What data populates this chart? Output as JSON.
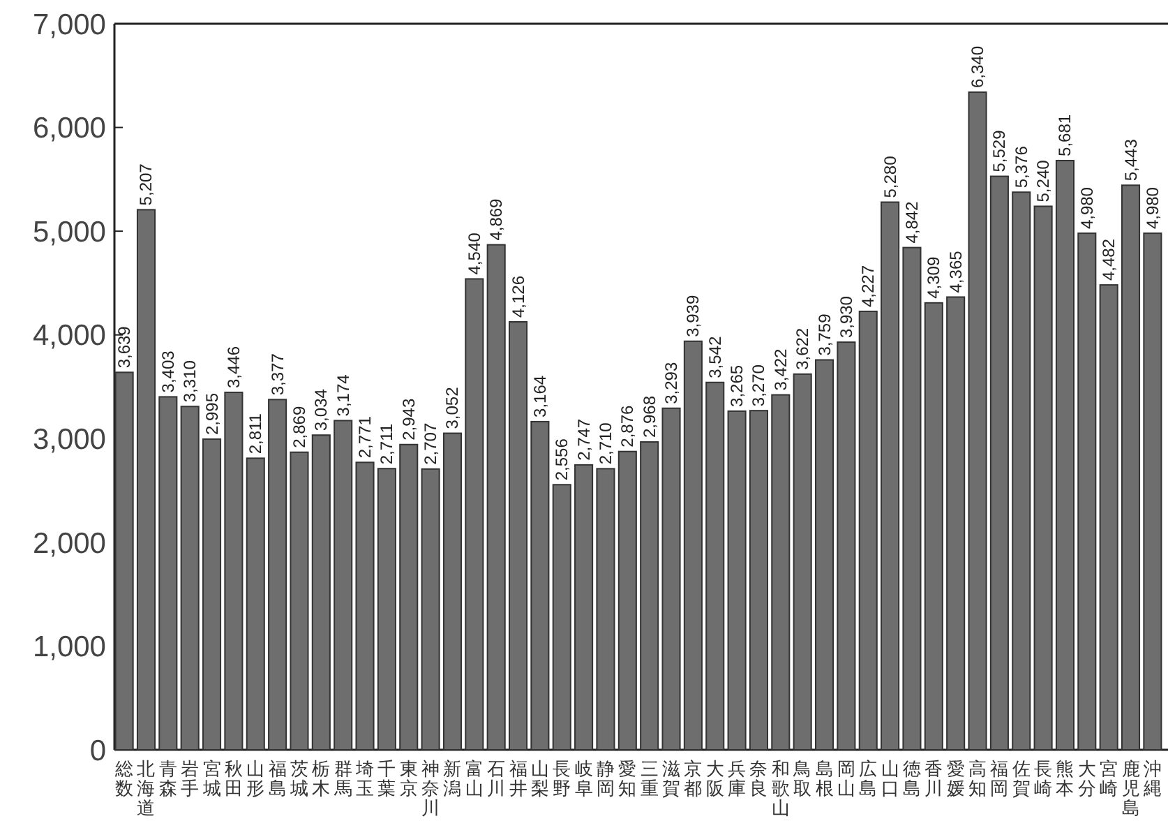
{
  "chart_data": {
    "type": "bar",
    "categories": [
      "総数",
      "北海道",
      "青森",
      "岩手",
      "宮城",
      "秋田",
      "山形",
      "福島",
      "茨城",
      "栃木",
      "群馬",
      "埼玉",
      "千葉",
      "東京",
      "神奈川",
      "新潟",
      "富山",
      "石川",
      "福井",
      "山梨",
      "長野",
      "岐阜",
      "静岡",
      "愛知",
      "三重",
      "滋賀",
      "京都",
      "大阪",
      "兵庫",
      "奈良",
      "和歌山",
      "鳥取",
      "島根",
      "岡山",
      "広島",
      "山口",
      "徳島",
      "香川",
      "愛媛",
      "高知",
      "福岡",
      "佐賀",
      "長崎",
      "熊本",
      "大分",
      "宮崎",
      "鹿児島",
      "沖縄"
    ],
    "values": [
      3639,
      5207,
      3403,
      3310,
      2995,
      3446,
      2811,
      3377,
      2869,
      3034,
      3174,
      2771,
      2711,
      2943,
      2707,
      3052,
      4540,
      4869,
      4126,
      3164,
      2556,
      2747,
      2710,
      2876,
      2968,
      3293,
      3939,
      3542,
      3265,
      3270,
      3422,
      3622,
      3759,
      3930,
      4227,
      5280,
      4842,
      4309,
      4365,
      6340,
      5529,
      5376,
      5240,
      5681,
      4980,
      4482,
      5443,
      4980
    ],
    "color": "#6e6e6e",
    "ylim": [
      0,
      7000
    ],
    "yticks": [
      {
        "value": 0,
        "label": "0"
      },
      {
        "value": 1000,
        "label": "1,000"
      },
      {
        "value": 2000,
        "label": "2,000"
      },
      {
        "value": 3000,
        "label": "3,000"
      },
      {
        "value": 4000,
        "label": "4,000"
      },
      {
        "value": 5000,
        "label": "5,000"
      },
      {
        "value": 6000,
        "label": "6,000"
      },
      {
        "value": 7000,
        "label": "7,000"
      }
    ],
    "value_labels": [
      "3,639",
      "5,207",
      "3,403",
      "3,310",
      "2,995",
      "3,446",
      "2,811",
      "3,377",
      "2,869",
      "3,034",
      "3,174",
      "2,771",
      "2,711",
      "2,943",
      "2,707",
      "3,052",
      "4,540",
      "4,869",
      "4,126",
      "3,164",
      "2,556",
      "2,747",
      "2,710",
      "2,876",
      "2,968",
      "3,293",
      "3,939",
      "3,542",
      "3,265",
      "3,270",
      "3,422",
      "3,622",
      "3,759",
      "3,930",
      "4,227",
      "5,280",
      "4,842",
      "4,309",
      "4,365",
      "6,340",
      "5,529",
      "5,376",
      "5,240",
      "5,681",
      "4,980",
      "4,482",
      "5,443",
      "4,980"
    ],
    "grid": false
  }
}
